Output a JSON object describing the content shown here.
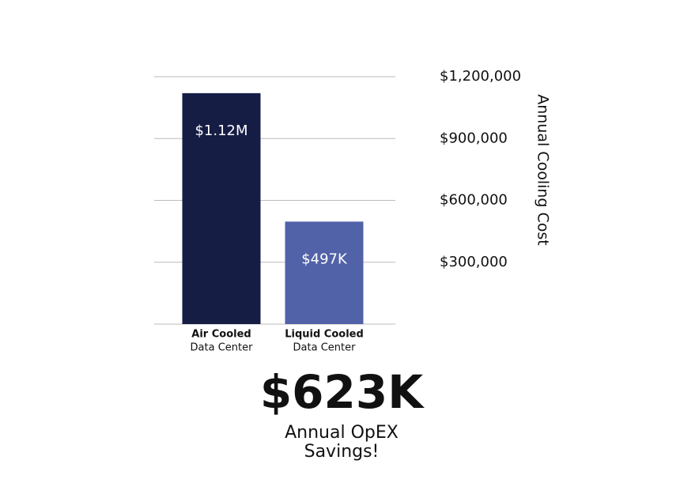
{
  "chart_data": {
    "type": "bar",
    "y_label": "Annual Cooling Cost",
    "categories": [
      "Air Cooled",
      "Liquid Cooled"
    ],
    "category_sublabels": [
      "Data Center",
      "Data Center"
    ],
    "values": [
      1120000,
      497000
    ],
    "value_labels": [
      "$1.12M",
      "$497K"
    ],
    "colors": [
      "#161d45",
      "#5262a8"
    ],
    "ylim": [
      0,
      1200000
    ],
    "yticks": [
      {
        "value": 300000,
        "label": "$300,000"
      },
      {
        "value": 600000,
        "label": "$600,000"
      },
      {
        "value": 900000,
        "label": "$900,000"
      },
      {
        "value": 1200000,
        "label": "$1,200,000"
      }
    ],
    "grid": true,
    "y_axis_side": "right",
    "annotation": {
      "headline": "$623K",
      "caption": [
        "Annual OpEX",
        "Savings!"
      ]
    }
  }
}
